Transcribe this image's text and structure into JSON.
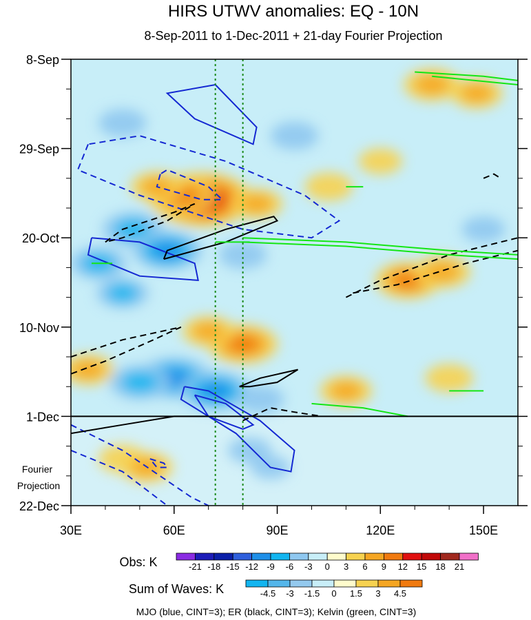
{
  "chart_data": {
    "type": "heatmap",
    "title": "HIRS UTWV anomalies: EQ - 10N",
    "subtitle": "8-Sep-2011 to 1-Dec-2011 + 21-day Fourier Projection",
    "x_axis": {
      "range_deg": [
        30,
        160
      ],
      "tick_values": [
        30,
        60,
        90,
        120,
        150
      ],
      "tick_labels": [
        "30E",
        "60E",
        "90E",
        "120E",
        "150E"
      ]
    },
    "y_axis": {
      "range_days_from_start": [
        0,
        105
      ],
      "tick_days": [
        0,
        21,
        42,
        63,
        84,
        105
      ],
      "tick_labels": [
        "8-Sep",
        "29-Sep",
        "20-Oct",
        "10-Nov",
        "1-Dec",
        "22-Dec"
      ]
    },
    "forecast_start_day": 84,
    "projection_label": [
      "Fourier",
      "Projection"
    ],
    "reference_lines_lon": [
      72,
      80
    ],
    "obs_legend": {
      "label": "Obs: K",
      "levels": [
        "-21",
        "-18",
        "-15",
        "-12",
        "-9",
        "-6",
        "-3",
        "0",
        "3",
        "6",
        "9",
        "12",
        "15",
        "18",
        "21"
      ],
      "colors": [
        "#8a2be2",
        "#1c1cb8",
        "#0a1fa8",
        "#2e5fdc",
        "#1e8fe8",
        "#12b5f0",
        "#8fc8f0",
        "#c8eef8",
        "#fffccc",
        "#f7d250",
        "#f5a623",
        "#f07a10",
        "#e01010",
        "#c00808",
        "#a0281e",
        "#f070c8"
      ]
    },
    "waves_legend": {
      "label": "Sum of Waves: K",
      "levels": [
        "-4.5",
        "-3",
        "-1.5",
        "0",
        "1.5",
        "3",
        "4.5"
      ],
      "colors": [
        "#12b5f0",
        "#54b6ea",
        "#94c9ee",
        "#c8eef8",
        "#fffccc",
        "#f7d250",
        "#f5a623",
        "#f07a10"
      ]
    },
    "contour_caption": "MJO (blue, CINT=3); ER (black, CINT=3); Kelvin (green, CINT=3)",
    "anomaly_blobs": [
      {
        "lon": 68,
        "day": 33,
        "value": 16
      },
      {
        "lon": 62,
        "day": 32,
        "value": 9
      },
      {
        "lon": 55,
        "day": 30,
        "value": 5
      },
      {
        "lon": 84,
        "day": 34,
        "value": 5
      },
      {
        "lon": 48,
        "day": 40,
        "value": -7
      },
      {
        "lon": 58,
        "day": 45,
        "value": -9
      },
      {
        "lon": 38,
        "day": 48,
        "value": -6
      },
      {
        "lon": 80,
        "day": 46,
        "value": -4
      },
      {
        "lon": 45,
        "day": 55,
        "value": -5
      },
      {
        "lon": 60,
        "day": 75,
        "value": -10
      },
      {
        "lon": 72,
        "day": 78,
        "value": -9
      },
      {
        "lon": 50,
        "day": 76,
        "value": -7
      },
      {
        "lon": 85,
        "day": 80,
        "value": -4
      },
      {
        "lon": 135,
        "day": 6,
        "value": 6
      },
      {
        "lon": 148,
        "day": 8,
        "value": 5
      },
      {
        "lon": 128,
        "day": 52,
        "value": 8
      },
      {
        "lon": 138,
        "day": 50,
        "value": 6
      },
      {
        "lon": 80,
        "day": 67,
        "value": 9
      },
      {
        "lon": 70,
        "day": 64,
        "value": 5
      },
      {
        "lon": 105,
        "day": 30,
        "value": 4
      },
      {
        "lon": 120,
        "day": 24,
        "value": 3
      },
      {
        "lon": 35,
        "day": 73,
        "value": 5
      },
      {
        "lon": 110,
        "day": 78,
        "value": 5
      },
      {
        "lon": 140,
        "day": 75,
        "value": 4
      },
      {
        "lon": 95,
        "day": 18,
        "value": -4
      },
      {
        "lon": 150,
        "day": 40,
        "value": -3
      },
      {
        "lon": 45,
        "day": 15,
        "value": -4
      },
      {
        "lon": 45,
        "day": 94,
        "value": 4
      },
      {
        "lon": 52,
        "day": 96,
        "value": 5
      },
      {
        "lon": 82,
        "day": 92,
        "value": -3
      },
      {
        "lon": 88,
        "day": 96,
        "value": -2
      }
    ],
    "contours": [
      {
        "wave": "MJO",
        "sign": "positive",
        "points": [
          [
            72,
            6
          ],
          [
            58,
            8
          ],
          [
            66,
            14
          ],
          [
            83,
            20
          ],
          [
            84,
            16
          ],
          [
            72,
            6
          ]
        ]
      },
      {
        "wave": "MJO",
        "sign": "negative",
        "points": [
          [
            35,
            20
          ],
          [
            32,
            26
          ],
          [
            50,
            32
          ],
          [
            80,
            40
          ],
          [
            100,
            42
          ],
          [
            108,
            38
          ],
          [
            98,
            32
          ],
          [
            75,
            24
          ],
          [
            50,
            18
          ],
          [
            35,
            20
          ]
        ]
      },
      {
        "wave": "MJO",
        "sign": "negative",
        "points": [
          [
            56,
            27
          ],
          [
            55,
            30
          ],
          [
            68,
            33
          ],
          [
            74,
            33
          ],
          [
            70,
            30
          ],
          [
            58,
            26
          ],
          [
            56,
            27
          ]
        ]
      },
      {
        "wave": "MJO",
        "sign": "positive",
        "points": [
          [
            36,
            42
          ],
          [
            35,
            46
          ],
          [
            50,
            51
          ],
          [
            67,
            52
          ],
          [
            66,
            48
          ],
          [
            50,
            43
          ],
          [
            36,
            42
          ]
        ]
      },
      {
        "wave": "MJO",
        "sign": "positive",
        "points": [
          [
            63,
            77
          ],
          [
            62,
            80
          ],
          [
            78,
            88
          ],
          [
            88,
            96
          ],
          [
            94,
            97
          ],
          [
            95,
            92
          ],
          [
            85,
            85
          ],
          [
            70,
            78
          ],
          [
            63,
            77
          ]
        ]
      },
      {
        "wave": "MJO",
        "sign": "positive",
        "points": [
          [
            66,
            79
          ],
          [
            70,
            84
          ],
          [
            80,
            87
          ],
          [
            83,
            86
          ],
          [
            75,
            81
          ],
          [
            66,
            79
          ]
        ]
      },
      {
        "wave": "MJO",
        "sign": "negative",
        "points": [
          [
            30,
            86
          ],
          [
            45,
            92
          ],
          [
            65,
            103
          ],
          [
            70,
            105
          ]
        ]
      },
      {
        "wave": "MJO",
        "sign": "negative",
        "points": [
          [
            30,
            92
          ],
          [
            45,
            97
          ],
          [
            58,
            105
          ]
        ]
      },
      {
        "wave": "MJO",
        "sign": "negative",
        "points": [
          [
            53,
            94
          ],
          [
            57,
            95
          ],
          [
            58,
            96
          ],
          [
            55,
            96
          ],
          [
            53,
            94
          ]
        ]
      },
      {
        "wave": "ER",
        "sign": "negative",
        "points": [
          [
            40,
            43
          ],
          [
            45,
            40
          ],
          [
            60,
            36
          ],
          [
            66,
            34
          ],
          [
            58,
            38
          ],
          [
            45,
            42
          ],
          [
            40,
            43
          ]
        ]
      },
      {
        "wave": "ER",
        "sign": "positive",
        "points": [
          [
            57,
            47
          ],
          [
            58,
            45
          ],
          [
            75,
            40
          ],
          [
            89,
            37
          ],
          [
            90,
            38
          ],
          [
            75,
            43
          ],
          [
            57,
            47
          ]
        ]
      },
      {
        "wave": "ER",
        "sign": "negative",
        "points": [
          [
            110,
            56
          ],
          [
            120,
            52
          ],
          [
            140,
            46
          ],
          [
            160,
            42
          ]
        ]
      },
      {
        "wave": "ER",
        "sign": "negative",
        "points": [
          [
            112,
            55
          ],
          [
            125,
            53
          ],
          [
            145,
            48
          ],
          [
            160,
            45
          ]
        ]
      },
      {
        "wave": "ER",
        "sign": "negative",
        "points": [
          [
            30,
            70
          ],
          [
            45,
            66
          ],
          [
            62,
            63
          ],
          [
            54,
            66
          ],
          [
            40,
            71
          ],
          [
            30,
            74
          ]
        ]
      },
      {
        "wave": "ER",
        "sign": "positive",
        "points": [
          [
            30,
            88
          ],
          [
            45,
            86
          ],
          [
            60,
            84
          ],
          [
            70,
            84
          ]
        ]
      },
      {
        "wave": "ER",
        "sign": "positive",
        "points": [
          [
            79,
            77
          ],
          [
            85,
            75
          ],
          [
            96,
            73
          ],
          [
            90,
            76
          ],
          [
            82,
            77
          ],
          [
            79,
            77
          ]
        ]
      },
      {
        "wave": "ER",
        "sign": "negative",
        "points": [
          [
            80,
            85
          ],
          [
            88,
            82
          ],
          [
            95,
            83
          ],
          [
            103,
            84
          ]
        ]
      },
      {
        "wave": "ER",
        "sign": "negative",
        "points": [
          [
            150,
            28
          ],
          [
            153,
            27
          ],
          [
            155,
            28
          ]
        ]
      },
      {
        "wave": "Kelvin",
        "sign": "positive",
        "points": [
          [
            130,
            3
          ],
          [
            150,
            4
          ],
          [
            160,
            5
          ]
        ]
      },
      {
        "wave": "Kelvin",
        "sign": "positive",
        "points": [
          [
            135,
            4
          ],
          [
            160,
            6
          ]
        ]
      },
      {
        "wave": "Kelvin",
        "sign": "positive",
        "points": [
          [
            80,
            43
          ],
          [
            110,
            44
          ],
          [
            140,
            46
          ],
          [
            160,
            47
          ]
        ]
      },
      {
        "wave": "Kelvin",
        "sign": "positive",
        "points": [
          [
            80,
            42
          ],
          [
            110,
            43
          ],
          [
            140,
            45
          ],
          [
            160,
            46
          ]
        ]
      },
      {
        "wave": "Kelvin",
        "sign": "positive",
        "points": [
          [
            36,
            48
          ],
          [
            42,
            48
          ]
        ]
      },
      {
        "wave": "Kelvin",
        "sign": "positive",
        "points": [
          [
            110,
            30
          ],
          [
            115,
            30
          ]
        ]
      },
      {
        "wave": "Kelvin",
        "sign": "positive",
        "points": [
          [
            72,
            43
          ],
          [
            82,
            43
          ]
        ]
      },
      {
        "wave": "Kelvin",
        "sign": "positive",
        "points": [
          [
            100,
            81
          ],
          [
            115,
            82
          ],
          [
            128,
            84
          ]
        ]
      },
      {
        "wave": "Kelvin",
        "sign": "positive",
        "points": [
          [
            140,
            78
          ],
          [
            150,
            78
          ]
        ]
      }
    ]
  }
}
